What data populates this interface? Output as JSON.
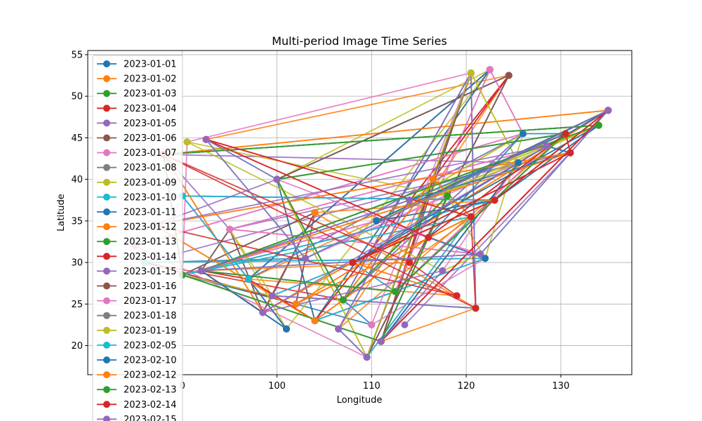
{
  "chart_data": {
    "type": "line",
    "title": "Multi-period Image Time Series",
    "xlabel": "Longitude",
    "ylabel": "Latitude",
    "xlim": [
      80,
      137.5
    ],
    "ylim": [
      16.5,
      55.5
    ],
    "xticks": [
      100,
      110,
      120,
      130
    ],
    "xtick_labels": [
      "100",
      "110",
      "120",
      "130"
    ],
    "xtick_partial_label": "0",
    "xtick_partial_value": 90,
    "yticks": [
      20,
      25,
      30,
      35,
      40,
      45,
      50,
      55
    ],
    "ytick_labels": [
      "20",
      "25",
      "30",
      "35",
      "40",
      "45",
      "50",
      "55"
    ],
    "grid": true,
    "legend": {
      "placement": "upper-left",
      "overflows_axes": true
    },
    "series": [
      {
        "name": "2023-01-01",
        "color": "#1f77b4"
      },
      {
        "name": "2023-01-02",
        "color": "#ff7f0e"
      },
      {
        "name": "2023-01-03",
        "color": "#2ca02c"
      },
      {
        "name": "2023-01-04",
        "color": "#d62728"
      },
      {
        "name": "2023-01-05",
        "color": "#9467bd"
      },
      {
        "name": "2023-01-06",
        "color": "#8c564b"
      },
      {
        "name": "2023-01-07",
        "color": "#e377c2"
      },
      {
        "name": "2023-01-08",
        "color": "#7f7f7f"
      },
      {
        "name": "2023-01-09",
        "color": "#bcbd22"
      },
      {
        "name": "2023-01-10",
        "color": "#17becf"
      },
      {
        "name": "2023-01-11",
        "color": "#1f77b4"
      },
      {
        "name": "2023-01-12",
        "color": "#ff7f0e"
      },
      {
        "name": "2023-01-13",
        "color": "#2ca02c"
      },
      {
        "name": "2023-01-14",
        "color": "#d62728"
      },
      {
        "name": "2023-01-15",
        "color": "#9467bd"
      },
      {
        "name": "2023-01-16",
        "color": "#8c564b"
      },
      {
        "name": "2023-01-17",
        "color": "#e377c2"
      },
      {
        "name": "2023-01-18",
        "color": "#7f7f7f"
      },
      {
        "name": "2023-01-19",
        "color": "#bcbd22"
      },
      {
        "name": "2023-02-05",
        "color": "#17becf"
      },
      {
        "name": "2023-02-10",
        "color": "#1f77b4"
      },
      {
        "name": "2023-02-12",
        "color": "#ff7f0e"
      },
      {
        "name": "2023-02-13",
        "color": "#2ca02c"
      },
      {
        "name": "2023-02-14",
        "color": "#d62728"
      },
      {
        "name": "2023-02-15",
        "color": "#9467bd"
      }
    ],
    "sample_points": [
      [
        122.5,
        53.2
      ],
      [
        124.5,
        52.5
      ],
      [
        120.5,
        52.8
      ],
      [
        135.0,
        48.3
      ],
      [
        134.0,
        46.5
      ],
      [
        131.0,
        43.2
      ],
      [
        126.0,
        45.5
      ],
      [
        92.5,
        44.8
      ],
      [
        90.5,
        44.5
      ],
      [
        88.0,
        43.0
      ],
      [
        90.0,
        38.0
      ],
      [
        87.0,
        34.5
      ],
      [
        85.0,
        32.0
      ],
      [
        86.0,
        30.0
      ],
      [
        90.0,
        28.5
      ],
      [
        98.5,
        24.0
      ],
      [
        101.0,
        22.0
      ],
      [
        104.0,
        23.0
      ],
      [
        109.5,
        18.6
      ],
      [
        111.0,
        20.5
      ],
      [
        110.5,
        35.0
      ],
      [
        108.0,
        30.0
      ],
      [
        114.0,
        37.5
      ],
      [
        116.0,
        33.0
      ],
      [
        118.0,
        38.0
      ],
      [
        121.0,
        24.5
      ],
      [
        121.5,
        31.0
      ],
      [
        119.0,
        26.0
      ],
      [
        113.5,
        22.5
      ],
      [
        107.0,
        25.5
      ],
      [
        103.0,
        30.5
      ],
      [
        104.0,
        36.0
      ],
      [
        95.0,
        34.0
      ],
      [
        97.0,
        28.0
      ],
      [
        100.0,
        40.0
      ],
      [
        116.5,
        40.0
      ],
      [
        125.5,
        42.0
      ],
      [
        123.0,
        37.5
      ],
      [
        128.5,
        44.0
      ],
      [
        130.5,
        45.5
      ],
      [
        122.0,
        30.5
      ],
      [
        120.5,
        35.5
      ],
      [
        117.5,
        29.0
      ],
      [
        114.0,
        30.0
      ],
      [
        112.5,
        26.5
      ],
      [
        106.5,
        22.0
      ],
      [
        110.0,
        22.5
      ],
      [
        102.0,
        25.0
      ],
      [
        99.5,
        26.0
      ],
      [
        92.0,
        29.0
      ]
    ]
  }
}
